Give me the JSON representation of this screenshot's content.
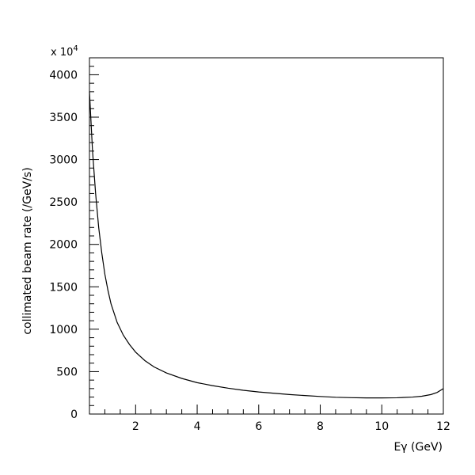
{
  "chart_data": {
    "type": "line",
    "title": "",
    "xlabel": "Eγ (GeV)",
    "ylabel": "collimated beam rate (/GeV/s)",
    "y_multiplier": {
      "base": "x 10",
      "exponent": "4"
    },
    "xlim": [
      0.5,
      12
    ],
    "ylim": [
      0,
      4200
    ],
    "x_major_ticks": [
      2,
      4,
      6,
      8,
      10,
      12
    ],
    "x_minor_step": 0.5,
    "y_major_ticks": [
      0,
      500,
      1000,
      1500,
      2000,
      2500,
      3000,
      3500,
      4000
    ],
    "y_minor_step": 100,
    "grid": false,
    "legend": "none",
    "series": [
      {
        "x": [
          0.5,
          0.6,
          0.7,
          0.8,
          0.9,
          1.0,
          1.1,
          1.2,
          1.4,
          1.6,
          1.8,
          2.0,
          2.3,
          2.6,
          3.0,
          3.5,
          4.0,
          4.5,
          5.0,
          5.5,
          6.0,
          6.5,
          7.0,
          7.5,
          8.0,
          8.5,
          9.0,
          9.5,
          10.0,
          10.5,
          11.0,
          11.3,
          11.6,
          11.8,
          12.0
        ],
        "y": [
          3800,
          3100,
          2600,
          2200,
          1900,
          1650,
          1460,
          1300,
          1080,
          930,
          820,
          730,
          630,
          555,
          485,
          420,
          370,
          335,
          305,
          280,
          260,
          245,
          230,
          218,
          207,
          198,
          193,
          190,
          190,
          192,
          200,
          210,
          230,
          255,
          300
        ]
      }
    ]
  }
}
